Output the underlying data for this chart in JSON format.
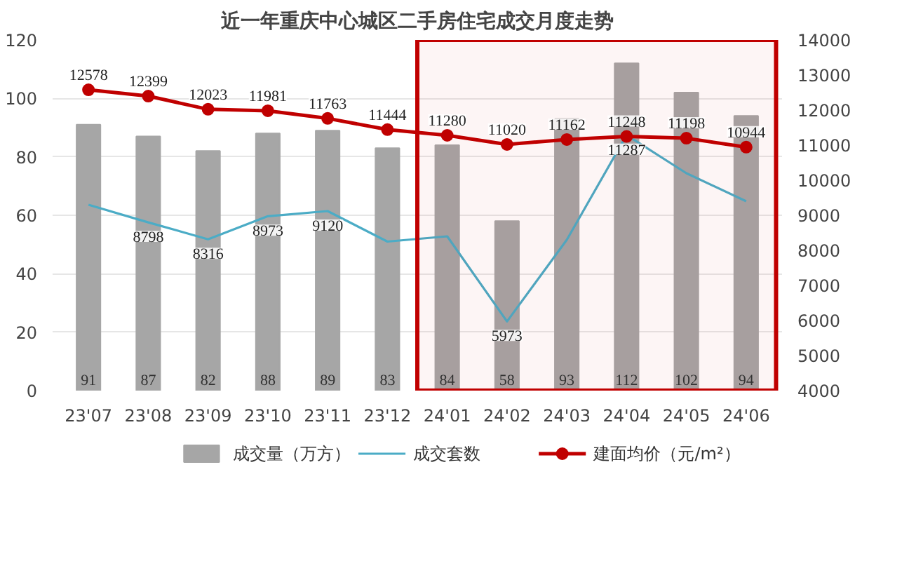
{
  "chart_data": {
    "type": "bar",
    "title": "近一年重庆中心城区二手房住宅成交月度走势",
    "categories": [
      "23'07",
      "23'08",
      "23'09",
      "23'10",
      "23'11",
      "23'12",
      "24'01",
      "24'02",
      "24'03",
      "24'04",
      "24'05",
      "24'06"
    ],
    "series": [
      {
        "name": "成交量（万方）",
        "color": "#a6a6a6",
        "values": [
          91,
          87,
          82,
          88,
          89,
          83,
          84,
          58,
          93,
          112,
          102,
          94
        ],
        "data_labels": true
      },
      {
        "name": "成交套数",
        "type": "line",
        "axis": "y2",
        "color": "#4bacc6",
        "marker": "none",
        "values": [
          9300,
          8798,
          8316,
          8973,
          9120,
          8250,
          8400,
          5973,
          8300,
          11287,
          10200,
          9400
        ],
        "value_labels": [
          null,
          "8798",
          "8316",
          "8973",
          "9120",
          null,
          null,
          "5973",
          null,
          "11287",
          null,
          null
        ]
      },
      {
        "name": "建面均价（元/m²）",
        "type": "line",
        "axis": "y2",
        "color": "#c00000",
        "marker": "circle",
        "values": [
          12578,
          12399,
          12023,
          11981,
          11763,
          11444,
          11280,
          11020,
          11162,
          11248,
          11198,
          10944
        ],
        "data_labels": true
      }
    ],
    "ylim": [
      0,
      120
    ],
    "yticks": [
      0,
      20,
      40,
      60,
      80,
      100,
      120
    ],
    "y2lim": [
      4000,
      14000
    ],
    "y2ticks": [
      4000,
      5000,
      6000,
      7000,
      8000,
      9000,
      10000,
      11000,
      12000,
      13000,
      14000
    ],
    "grid": "y",
    "legend": "bottom",
    "bands": [
      {
        "axis": "x",
        "from": "24'01",
        "to": "24'06",
        "color": "#c00000"
      }
    ]
  }
}
